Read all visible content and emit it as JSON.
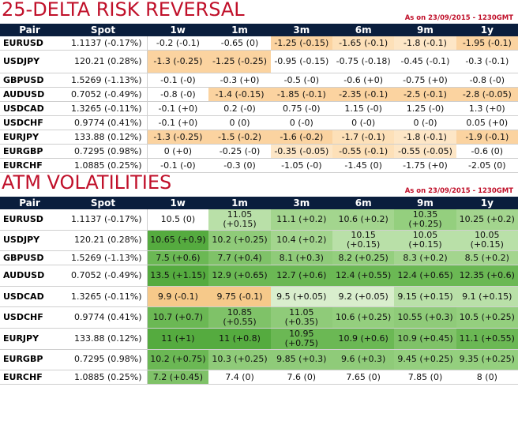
{
  "rr": {
    "title": "25-DELTA RISK REVERSAL",
    "asof": "As on 23/09/2015 - 1230GMT",
    "headers": [
      "Pair",
      "Spot",
      "1w",
      "1m",
      "3m",
      "6m",
      "9m",
      "1y"
    ],
    "rows": [
      {
        "pair": "EURUSD",
        "spot": "1.1137 (-0.17%)",
        "cells": [
          "-0.2 (-0.1)",
          "-0.65 (0)",
          "-1.25 (-0.15)",
          "-1.65 (-0.1)",
          "-1.8 (-0.1)",
          "-1.95 (-0.1)"
        ]
      },
      {
        "pair": "USDJPY",
        "spot": "120.21 (0.28%)",
        "cells": [
          "-1.3 (-0.25)",
          "-1.25 (-0.25)",
          "-0.95 (-0.15)",
          "-0.75 (-0.18)",
          "-0.45 (-0.1)",
          "-0.3 (-0.1)"
        ]
      },
      {
        "pair": "GBPUSD",
        "spot": "1.5269 (-1.13%)",
        "cells": [
          "-0.1 (-0)",
          "-0.3 (+0)",
          "-0.5 (-0)",
          "-0.6 (+0)",
          "-0.75 (+0)",
          "-0.8 (-0)"
        ]
      },
      {
        "pair": "AUDUSD",
        "spot": "0.7052 (-0.49%)",
        "cells": [
          "-0.8 (-0)",
          "-1.4 (-0.15)",
          "-1.85 (-0.1)",
          "-2.35 (-0.1)",
          "-2.5 (-0.1)",
          "-2.8 (-0.05)"
        ]
      },
      {
        "pair": "USDCAD",
        "spot": "1.3265 (-0.11%)",
        "cells": [
          "-0.1 (+0)",
          "0.2 (-0)",
          "0.75 (-0)",
          "1.15 (-0)",
          "1.25 (-0)",
          "1.3 (+0)"
        ]
      },
      {
        "pair": "USDCHF",
        "spot": "0.9774 (0.41%)",
        "cells": [
          "-0.1 (+0)",
          "0 (0)",
          "0 (-0)",
          "0 (-0)",
          "0 (-0)",
          "0.05 (+0)"
        ]
      },
      {
        "pair": "EURJPY",
        "spot": "133.88 (0.12%)",
        "cells": [
          "-1.3 (-0.25)",
          "-1.5 (-0.2)",
          "-1.6 (-0.2)",
          "-1.7 (-0.1)",
          "-1.8 (-0.1)",
          "-1.9 (-0.1)"
        ]
      },
      {
        "pair": "EURGBP",
        "spot": "0.7295 (0.98%)",
        "cells": [
          "0 (+0)",
          "-0.25 (-0)",
          "-0.35 (-0.05)",
          "-0.55 (-0.1)",
          "-0.55 (-0.05)",
          "-0.6 (0)"
        ]
      },
      {
        "pair": "EURCHF",
        "spot": "1.0885 (0.25%)",
        "cells": [
          "-0.1 (-0)",
          "-0.3 (0)",
          "-1.05 (-0)",
          "-1.45 (0)",
          "-1.75 (+0)",
          "-2.05 (0)"
        ]
      }
    ],
    "colors": [
      [
        "#ffffff",
        "#ffffff",
        "#fbd3a0",
        "#fde0b8",
        "#fde6c6",
        "#fbd3a0"
      ],
      [
        "#fbd3a0",
        "#fbd3a0",
        "#ffffff",
        "#ffffff",
        "#ffffff",
        "#ffffff"
      ],
      [
        "#ffffff",
        "#ffffff",
        "#ffffff",
        "#ffffff",
        "#ffffff",
        "#ffffff"
      ],
      [
        "#ffffff",
        "#fbd3a0",
        "#fbd3a0",
        "#fbd3a0",
        "#fbd3a0",
        "#fbd3a0"
      ],
      [
        "#ffffff",
        "#ffffff",
        "#ffffff",
        "#ffffff",
        "#ffffff",
        "#ffffff"
      ],
      [
        "#ffffff",
        "#ffffff",
        "#ffffff",
        "#ffffff",
        "#ffffff",
        "#ffffff"
      ],
      [
        "#fbd3a0",
        "#fbd3a0",
        "#fbd3a0",
        "#fde0b8",
        "#fde6c6",
        "#fbd3a0"
      ],
      [
        "#ffffff",
        "#ffffff",
        "#fde6c6",
        "#fde0b8",
        "#fde6c6",
        "#ffffff"
      ],
      [
        "#ffffff",
        "#ffffff",
        "#ffffff",
        "#ffffff",
        "#ffffff",
        "#ffffff"
      ]
    ]
  },
  "atm": {
    "title": "ATM VOLATILITIES",
    "asof": "As on 23/09/2015 - 1230GMT",
    "headers": [
      "Pair",
      "Spot",
      "1w",
      "1m",
      "3m",
      "6m",
      "9m",
      "1y"
    ],
    "rows": [
      {
        "pair": "EURUSD",
        "spot": "1.1137 (-0.17%)",
        "cells": [
          "10.5 (0)",
          "11.05 (+0.15)",
          "11.1 (+0.2)",
          "10.6 (+0.2)",
          "10.35 (+0.25)",
          "10.25 (+0.2)"
        ]
      },
      {
        "pair": "USDJPY",
        "spot": "120.21 (0.28%)",
        "cells": [
          "10.65 (+0.9)",
          "10.2 (+0.25)",
          "10.4 (+0.2)",
          "10.15 (+0.15)",
          "10.05 (+0.15)",
          "10.05 (+0.15)"
        ]
      },
      {
        "pair": "GBPUSD",
        "spot": "1.5269 (-1.13%)",
        "cells": [
          "7.5 (+0.6)",
          "7.7 (+0.4)",
          "8.1 (+0.3)",
          "8.2 (+0.25)",
          "8.3 (+0.2)",
          "8.5 (+0.2)"
        ]
      },
      {
        "pair": "AUDUSD",
        "spot": "0.7052 (-0.49%)",
        "cells": [
          "13.5 (+1.15)",
          "12.9 (+0.65)",
          "12.7 (+0.6)",
          "12.4 (+0.55)",
          "12.4 (+0.65)",
          "12.35 (+0.6)"
        ]
      },
      {
        "pair": "USDCAD",
        "spot": "1.3265 (-0.11%)",
        "cells": [
          "9.9 (-0.1)",
          "9.75 (-0.1)",
          "9.5 (+0.05)",
          "9.2 (+0.05)",
          "9.15 (+0.15)",
          "9.1 (+0.15)"
        ]
      },
      {
        "pair": "USDCHF",
        "spot": "0.9774 (0.41%)",
        "cells": [
          "10.7 (+0.7)",
          "10.85 (+0.55)",
          "11.05 (+0.35)",
          "10.6 (+0.25)",
          "10.55 (+0.3)",
          "10.5 (+0.25)"
        ]
      },
      {
        "pair": "EURJPY",
        "spot": "133.88 (0.12%)",
        "cells": [
          "11 (+1)",
          "11 (+0.8)",
          "10.95 (+0.75)",
          "10.9 (+0.6)",
          "10.9 (+0.45)",
          "11.1 (+0.55)"
        ]
      },
      {
        "pair": "EURGBP",
        "spot": "0.7295 (0.98%)",
        "cells": [
          "10.2 (+0.75)",
          "10.3 (+0.25)",
          "9.85 (+0.3)",
          "9.6 (+0.3)",
          "9.45 (+0.25)",
          "9.35 (+0.25)"
        ]
      },
      {
        "pair": "EURCHF",
        "spot": "1.0885 (0.25%)",
        "cells": [
          "7.2 (+0.45)",
          "7.4 (0)",
          "7.6 (0)",
          "7.65 (0)",
          "7.85 (0)",
          "8 (0)"
        ]
      }
    ],
    "colors": [
      [
        "#ffffff",
        "#b9e0a8",
        "#a3d58e",
        "#a3d58e",
        "#94cf7e",
        "#a3d58e"
      ],
      [
        "#55ab3f",
        "#8fcb79",
        "#a3d58e",
        "#b9e0a8",
        "#b9e0a8",
        "#b9e0a8"
      ],
      [
        "#6bb854",
        "#7fc268",
        "#8fcb79",
        "#94cf7e",
        "#a3d58e",
        "#a3d58e"
      ],
      [
        "#55ab3f",
        "#6bb854",
        "#6bb854",
        "#6bb854",
        "#6bb854",
        "#6bb854"
      ],
      [
        "#f6c98a",
        "#f6c98a",
        "#d9eecd",
        "#d9eecd",
        "#b9e0a8",
        "#b9e0a8"
      ],
      [
        "#6bb854",
        "#7fc268",
        "#8fcb79",
        "#94cf7e",
        "#8fcb79",
        "#94cf7e"
      ],
      [
        "#55ab3f",
        "#55ab3f",
        "#6bb854",
        "#6bb854",
        "#7fc268",
        "#6bb854"
      ],
      [
        "#6bb854",
        "#8fcb79",
        "#8fcb79",
        "#8fcb79",
        "#94cf7e",
        "#94cf7e"
      ],
      [
        "#7fc268",
        "#ffffff",
        "#ffffff",
        "#ffffff",
        "#ffffff",
        "#ffffff"
      ]
    ]
  }
}
